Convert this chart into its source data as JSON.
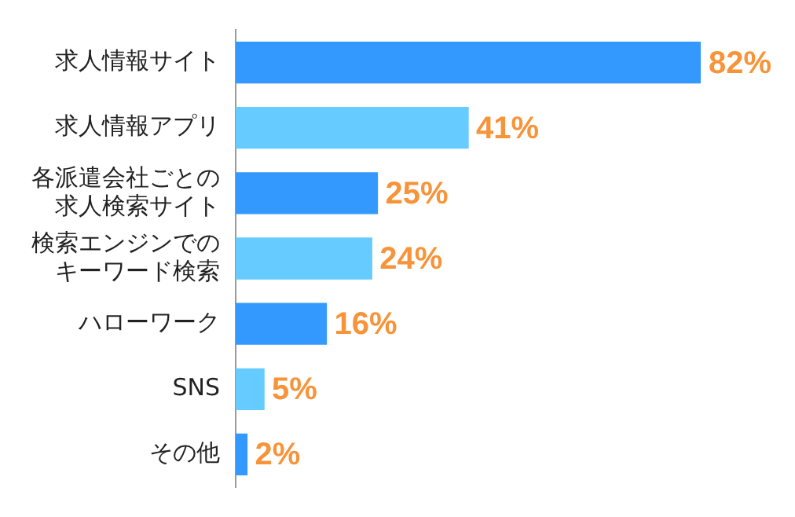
{
  "chart_data": {
    "type": "bar",
    "orientation": "horizontal",
    "categories": [
      "求人情報サイト",
      "求人情報アプリ",
      "各派遣会社ごとの求人検索サイト",
      "検索エンジンでのキーワード検索",
      "ハローワーク",
      "SNS",
      "その他"
    ],
    "values": [
      82,
      41,
      25,
      24,
      16,
      5,
      2
    ],
    "colors": [
      "#3399ff",
      "#66ccff",
      "#3399ff",
      "#66ccff",
      "#3399ff",
      "#66ccff",
      "#3399ff"
    ],
    "value_labels": [
      "82%",
      "41%",
      "25%",
      "24%",
      "16%",
      "5%",
      "2%"
    ],
    "grid": false,
    "legend": false
  }
}
